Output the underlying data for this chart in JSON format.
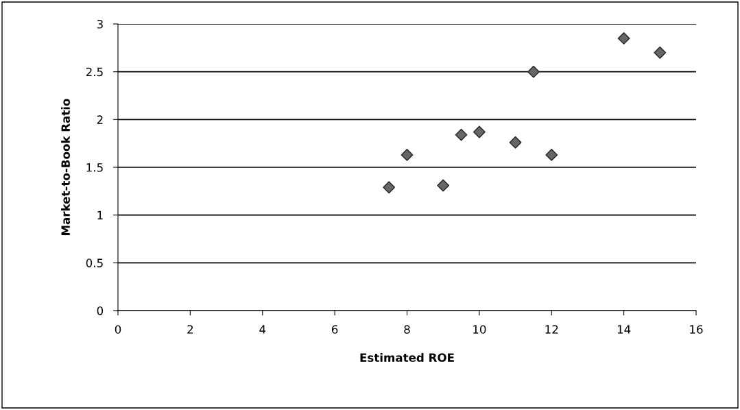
{
  "chart_data": {
    "type": "scatter",
    "xlabel": "Estimated ROE",
    "ylabel": "Market-to-Book Ratio",
    "x": [
      7.5,
      8,
      9,
      9.5,
      10,
      11,
      11.5,
      12,
      14,
      15
    ],
    "values": [
      1.29,
      1.63,
      1.31,
      1.84,
      1.87,
      1.76,
      2.5,
      1.63,
      2.85,
      2.7
    ],
    "color": "#666666",
    "marker": "diamond",
    "xlim": [
      0,
      16
    ],
    "xticks": [
      0,
      2,
      4,
      6,
      8,
      10,
      12,
      14,
      16
    ],
    "ylim": [
      0,
      3
    ],
    "yticks": [
      0,
      0.5,
      1,
      1.5,
      2,
      2.5,
      3
    ],
    "grid": "y",
    "legend": false
  }
}
